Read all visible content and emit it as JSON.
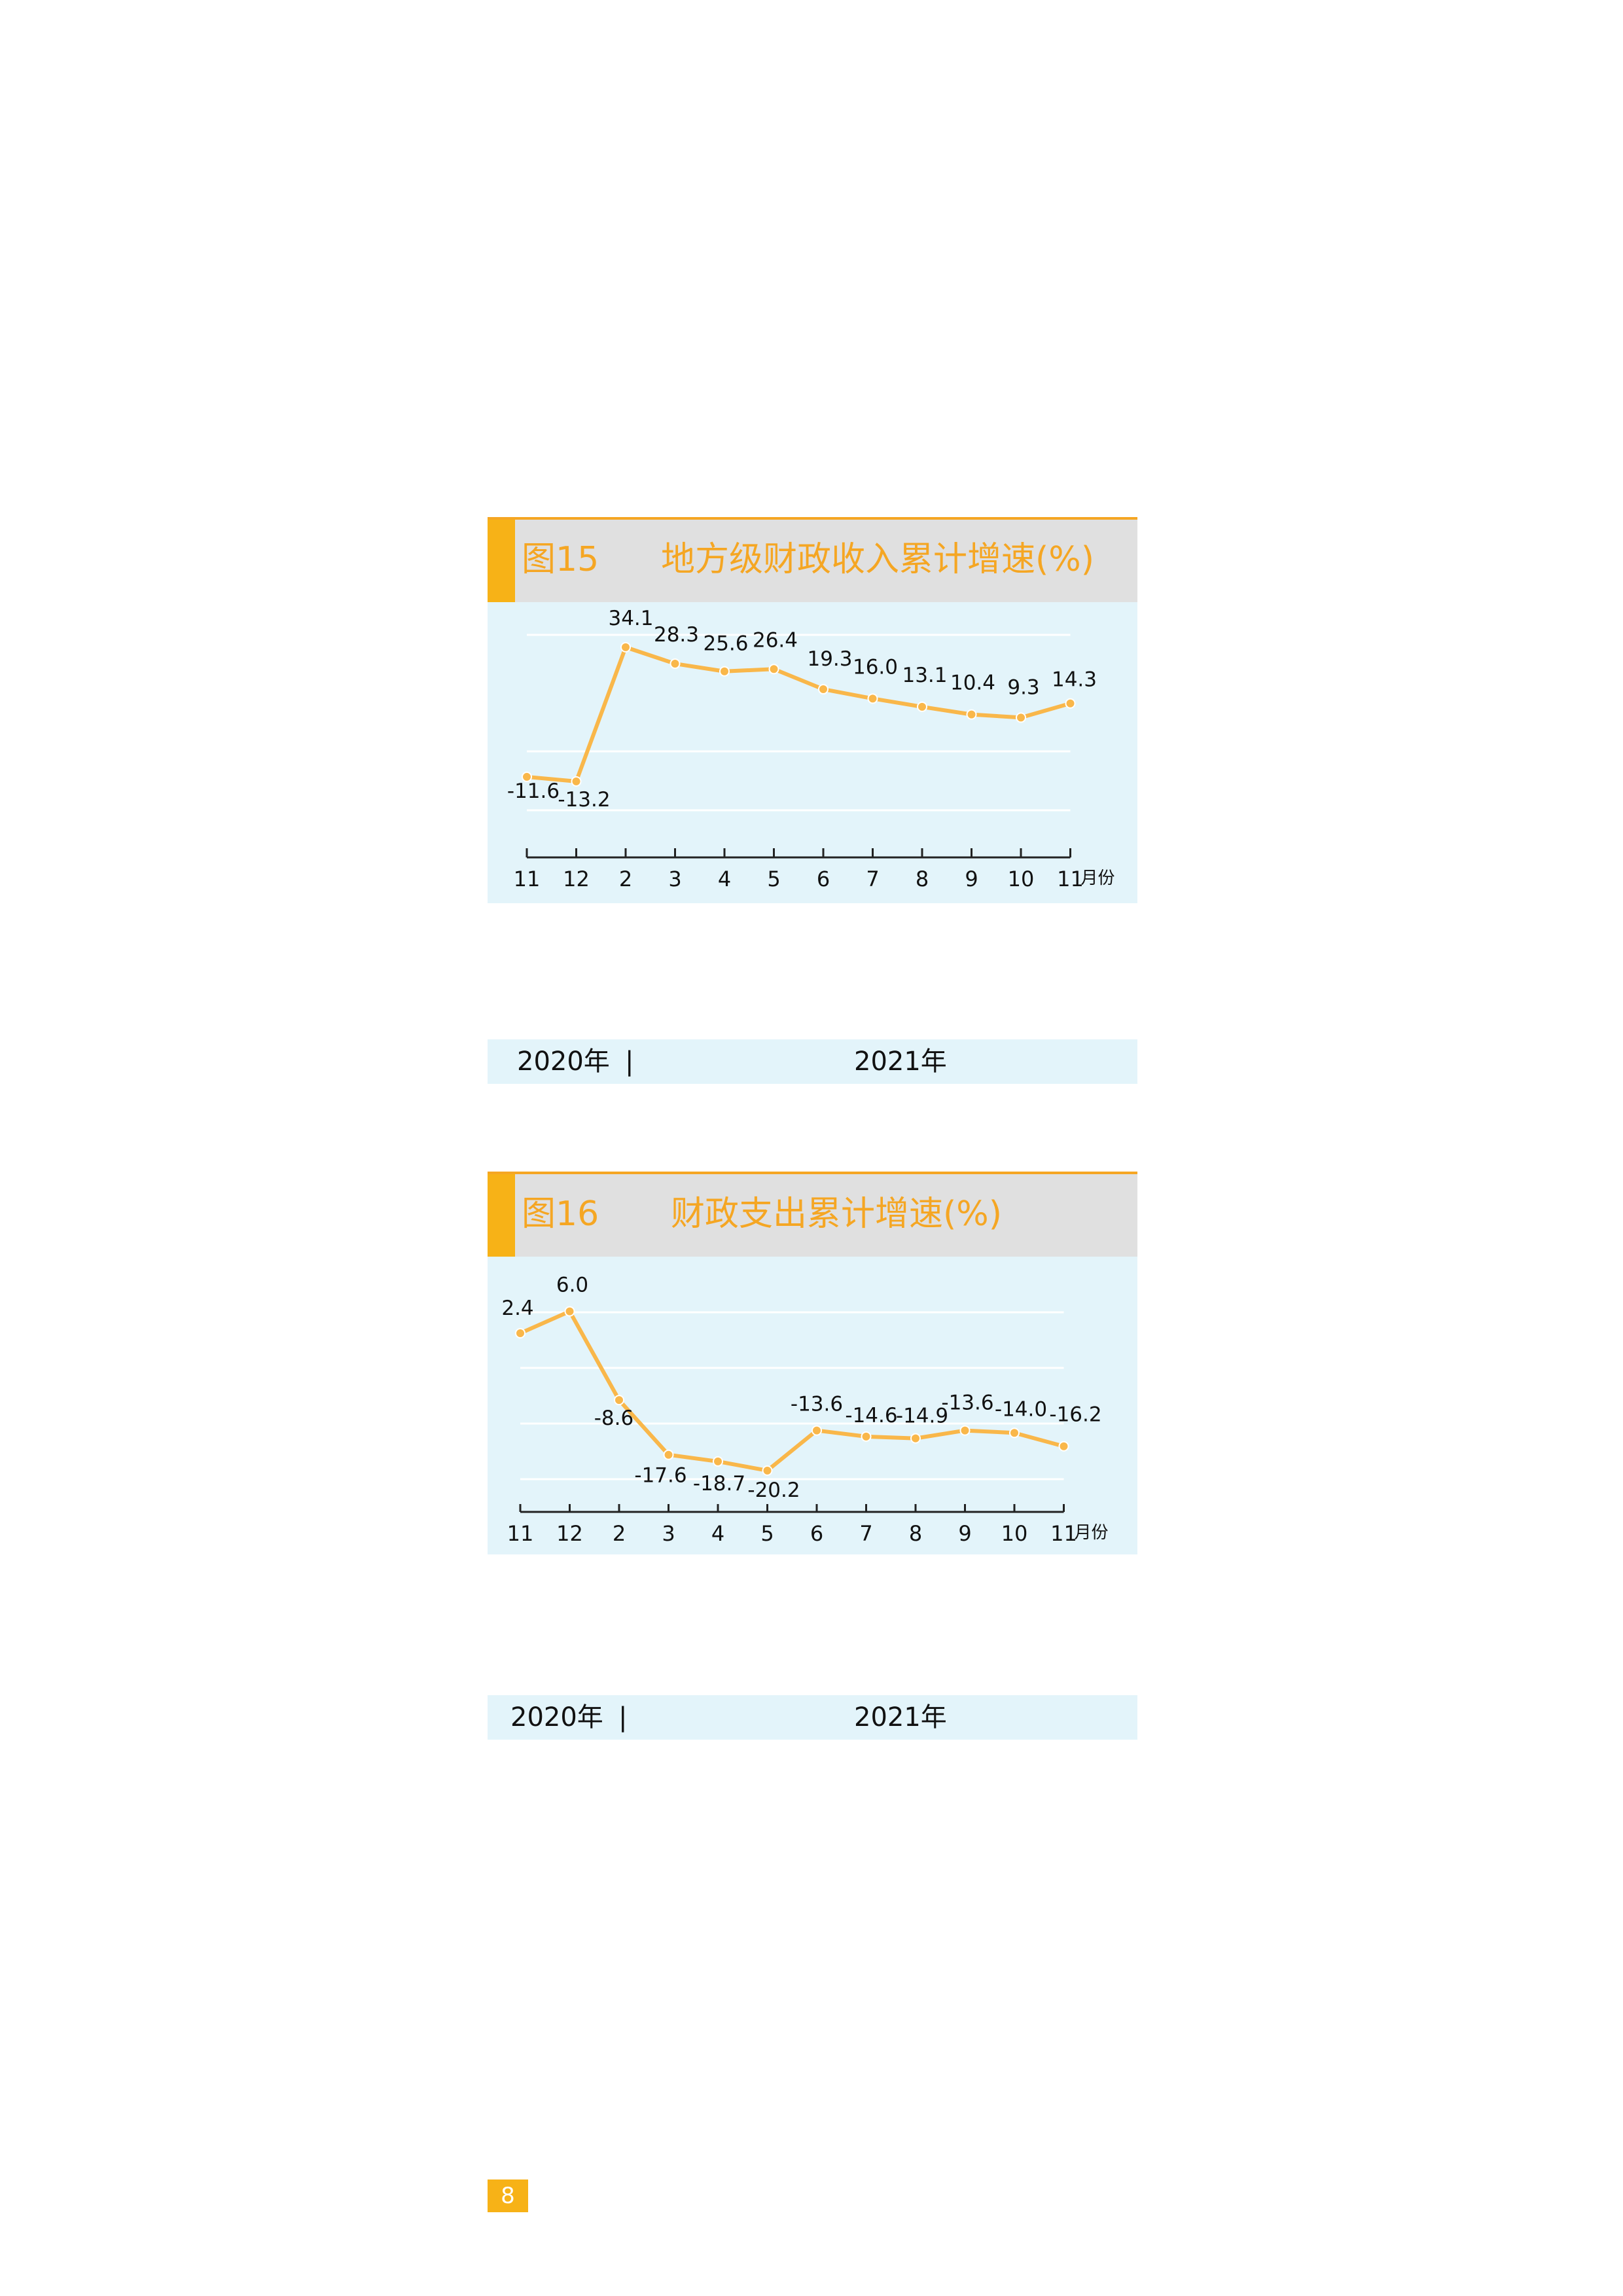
{
  "page_number": "8",
  "colors": {
    "accent": "#f7b217",
    "line": "#f9b74a",
    "panel_bg": "#e3f4fa",
    "header_bg": "#e0e0e0"
  },
  "figures": [
    {
      "number": "图15",
      "title": "地方级财政收入累计增速(%)",
      "year_left": "2020年",
      "separator": "|",
      "year_right": "2021年",
      "unit": "月份"
    },
    {
      "number": "图16",
      "title": "财政支出累计增速(%)",
      "year_left": "2020年",
      "separator": "|",
      "year_right": "2021年",
      "unit": "月份"
    }
  ],
  "chart_data": [
    {
      "type": "line",
      "title": "地方级财政收入累计增速(%)",
      "categories": [
        "11",
        "12",
        "2",
        "3",
        "4",
        "5",
        "6",
        "7",
        "8",
        "9",
        "10",
        "11"
      ],
      "values": [
        -11.6,
        -13.2,
        34.1,
        28.3,
        25.6,
        26.4,
        19.3,
        16.0,
        13.1,
        10.4,
        9.3,
        14.3
      ],
      "data_labels": [
        "-11.6",
        "-13.2",
        "34.1",
        "28.3",
        "25.6",
        "26.4",
        "19.3",
        "16.0",
        "13.1",
        "10.4",
        "9.3",
        "14.3"
      ],
      "xlabel": "月份",
      "ylim": [
        -40,
        50
      ],
      "grid": true
    },
    {
      "type": "line",
      "title": "财政支出累计增速(%)",
      "categories": [
        "11",
        "12",
        "2",
        "3",
        "4",
        "5",
        "6",
        "7",
        "8",
        "9",
        "10",
        "11"
      ],
      "values": [
        2.4,
        6.0,
        -8.6,
        -17.6,
        -18.7,
        -20.2,
        -13.6,
        -14.6,
        -14.9,
        -13.6,
        -14.0,
        -16.2
      ],
      "data_labels": [
        "2.4",
        "6.0",
        "-8.6",
        "-17.6",
        "-18.7",
        "-20.2",
        "-13.6",
        "-14.6",
        "-14.9",
        "-13.6",
        "-14.0",
        "-16.2"
      ],
      "xlabel": "月份",
      "ylim": [
        -27,
        15
      ],
      "grid": true
    }
  ]
}
